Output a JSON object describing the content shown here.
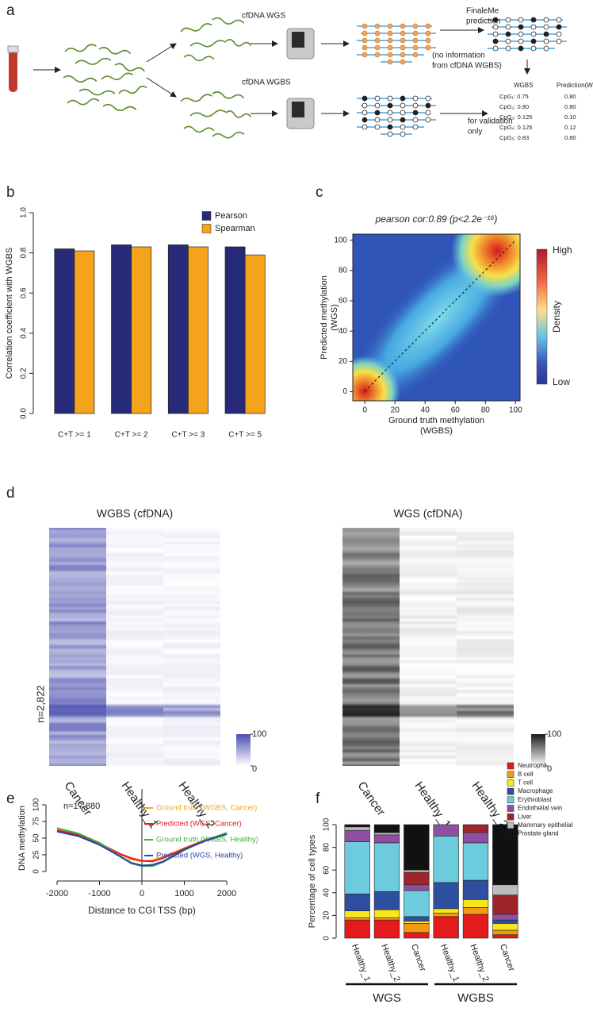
{
  "panel_labels": [
    "a",
    "b",
    "c",
    "d",
    "e",
    "f"
  ],
  "diagram": {
    "wgs_label": "cfDNA WGS",
    "wgbs_label": "cfDNA WGBS",
    "prediction_label": [
      "FinaleMe",
      "prediction"
    ],
    "no_info_label": [
      "(no information",
      "from cfDNA WGBS)"
    ],
    "validation_label": [
      "for validation",
      "only"
    ],
    "table": {
      "header": [
        "WGBS",
        "Prediction(WGS)"
      ],
      "rows": [
        [
          "CpG₁: 0.75",
          "0.80"
        ],
        [
          "CpG₂: 0.80",
          "0.80"
        ],
        [
          "CpG₃: 0.125",
          "0.10"
        ],
        [
          "CpG₄: 0.125",
          "0.12"
        ],
        [
          "CpG₅: 0.83",
          "0.80"
        ]
      ]
    }
  },
  "chart_data": [
    {
      "type": "bar",
      "ylabel": "Correlation coefficient with WGBS",
      "categories": [
        "C+T >= 1",
        "C+T >= 2",
        "C+T >= 3",
        "C+T >= 5"
      ],
      "series": [
        {
          "name": "Pearson",
          "color": "#272a78",
          "values": [
            0.82,
            0.84,
            0.84,
            0.83
          ]
        },
        {
          "name": "Spearman",
          "color": "#f5a31a",
          "values": [
            0.81,
            0.83,
            0.83,
            0.79
          ]
        }
      ],
      "ylim": [
        0,
        1
      ],
      "yticks": [
        {
          "value": 0,
          "label": "0.0"
        },
        {
          "value": 0.2,
          "label": "0.2"
        },
        {
          "value": 0.4,
          "label": "0.4"
        },
        {
          "value": 0.6,
          "label": "0.6"
        },
        {
          "value": 0.8,
          "label": "0.8"
        },
        {
          "value": 1,
          "label": "1.0"
        }
      ],
      "legend": "top-right"
    },
    {
      "type": "density",
      "title": "pearson cor:0.89 (p<2.2e⁻¹⁶)",
      "xlabel": [
        "Ground truth methylation",
        "(WGBS)"
      ],
      "ylabel": [
        "Predicted methylation",
        "(WGS)"
      ],
      "xlim": [
        -8,
        103
      ],
      "ylim": [
        -6,
        104
      ],
      "xticks": [
        0,
        20,
        40,
        60,
        80,
        100
      ],
      "yticks": [
        0,
        20,
        40,
        60,
        80,
        100
      ],
      "colorbar": {
        "high": "High",
        "label": "Density",
        "low": "Low"
      }
    },
    {
      "type": "heatmap",
      "title": "WGBS (cfDNA)",
      "categories": [
        "Cancer",
        "Healthy_1",
        "Healthy_2"
      ],
      "annotation": "n=2,822",
      "zlim": [
        0,
        100
      ],
      "zticks": [
        0,
        100
      ],
      "color": "#4b4fae"
    },
    {
      "type": "heatmap",
      "title": "WGS (cfDNA)",
      "categories": [
        "Cancer",
        "Healthy_1",
        "Healthy_2"
      ],
      "zlim": [
        0,
        100
      ],
      "zticks": [
        0,
        100
      ],
      "color": "#1a1a1a"
    },
    {
      "type": "line",
      "xlabel": "Distance to CGI TSS (bp)",
      "ylabel": "DNA methylation",
      "annotation": "n=17,880",
      "x": [
        -2000,
        -1500,
        -1000,
        -500,
        -250,
        0,
        250,
        500,
        1000,
        1500,
        2000
      ],
      "series": [
        {
          "name": "Ground truth (WGBS, Cancer)",
          "color": "#f5a31a",
          "values": [
            62,
            55,
            42,
            25,
            18,
            15,
            17,
            22,
            35,
            48,
            56
          ]
        },
        {
          "name": "Predicted (WGS, Cancer)",
          "color": "#e3191c",
          "values": [
            62,
            55,
            42,
            26,
            20,
            16,
            15,
            20,
            34,
            47,
            56
          ]
        },
        {
          "name": "Ground truth (WGBS, Healthy)",
          "color": "#3cb43c",
          "values": [
            65,
            57,
            43,
            22,
            12,
            8,
            8,
            14,
            32,
            47,
            58
          ]
        },
        {
          "name": "Predicted (WGS, Healthy)",
          "color": "#2a3fb0",
          "values": [
            60,
            53,
            40,
            22,
            13,
            9,
            10,
            15,
            33,
            46,
            56
          ]
        }
      ],
      "xlim": [
        -2000,
        2000
      ],
      "ylim": [
        0,
        100
      ],
      "xticks": [
        -2000,
        -1000,
        0,
        1000,
        2000
      ],
      "yticks": [
        0,
        25,
        50,
        75,
        100
      ],
      "vline": 0
    },
    {
      "type": "bar",
      "stacked": true,
      "ylabel": "Percentage of cell types",
      "categories": [
        "Healthy_1",
        "Healthy_2",
        "Cancer",
        "Healthy_1",
        "Healthy_2",
        "Cancer"
      ],
      "group_labels": [
        "WGS",
        "WGBS"
      ],
      "series": [
        {
          "name": "Neutrophil",
          "color": "#e41a1c",
          "values": [
            16,
            16,
            5,
            19,
            21,
            3
          ]
        },
        {
          "name": "B cell",
          "color": "#f39c12",
          "values": [
            2,
            2,
            8,
            3,
            6,
            4
          ]
        },
        {
          "name": "T cell",
          "color": "#f5e71b",
          "values": [
            6,
            7,
            2,
            4,
            7,
            6
          ]
        },
        {
          "name": "Macrophage",
          "color": "#2e4fa0",
          "values": [
            15,
            16,
            4,
            23,
            17,
            3
          ]
        },
        {
          "name": "Erythroblast",
          "color": "#6ccbdc",
          "values": [
            46,
            43,
            23,
            41,
            33,
            0
          ]
        },
        {
          "name": "Endothelial vein",
          "color": "#8e4fa3",
          "values": [
            10,
            7,
            5,
            10,
            9,
            5
          ]
        },
        {
          "name": "Liver",
          "color": "#a0252a",
          "values": [
            0,
            0,
            11,
            0,
            7,
            17
          ]
        },
        {
          "name": "Mammary epithelial",
          "color": "#bdbdbd",
          "values": [
            3,
            2,
            2,
            0,
            0,
            9
          ]
        },
        {
          "name": "Prostate gland",
          "color": "#111111",
          "values": [
            2,
            7,
            40,
            0,
            0,
            53
          ]
        }
      ],
      "ylim": [
        0,
        100
      ],
      "yticks": [
        0,
        20,
        40,
        60,
        80,
        100
      ],
      "legend": "above-right"
    }
  ]
}
